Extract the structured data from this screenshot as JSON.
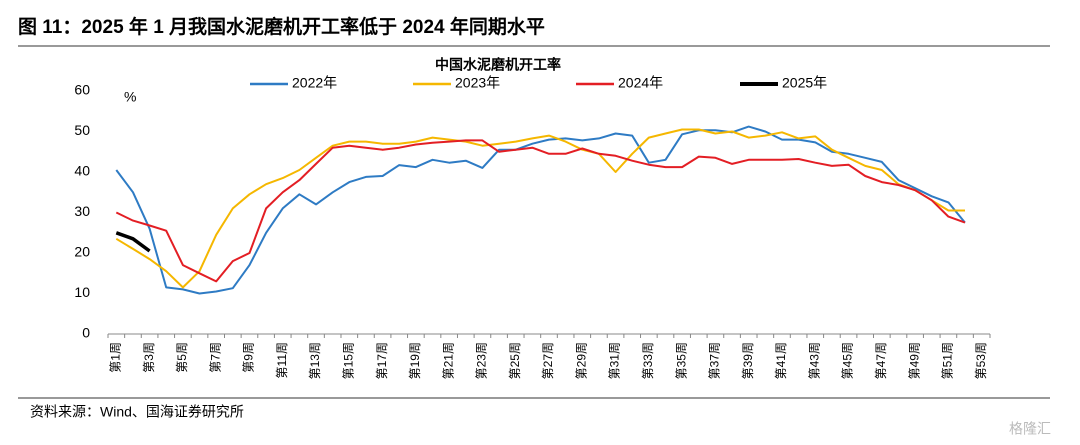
{
  "header": {
    "title": "图 11：2025 年 1 月我国水泥磨机开工率低于 2024 年同期水平"
  },
  "chart_data": {
    "type": "line",
    "title": "中国水泥磨机开工率",
    "y_unit": "%",
    "categories": [
      "第1周",
      null,
      "第3周",
      null,
      "第5周",
      null,
      "第7周",
      null,
      "第9周",
      null,
      "第11周",
      null,
      "第13周",
      null,
      "第15周",
      null,
      "第17周",
      null,
      "第19周",
      null,
      "第21周",
      null,
      "第23周",
      null,
      "第25周",
      null,
      "第27周",
      null,
      "第29周",
      null,
      "第31周",
      null,
      "第33周",
      null,
      "第35周",
      null,
      "第37周",
      null,
      "第39周",
      null,
      "第41周",
      null,
      "第43周",
      null,
      "第45周",
      null,
      "第47周",
      null,
      "第49周",
      null,
      "第51周",
      null,
      "第53周"
    ],
    "series": [
      {
        "name": "2022年",
        "color": "#2e7bc4",
        "values": [
          40.5,
          35,
          26,
          11.5,
          11,
          10,
          10.5,
          11.3,
          17,
          25,
          31,
          34.5,
          32,
          35,
          37.5,
          38.8,
          39,
          41.7,
          41.2,
          43,
          42.3,
          42.8,
          41,
          45.5,
          45.5,
          47,
          48,
          48.3,
          47.8,
          48.3,
          49.5,
          49,
          42.3,
          43,
          49.3,
          50.3,
          50.3,
          49.8,
          51.2,
          50,
          48,
          48,
          47.3,
          45,
          44.5,
          43.5,
          42.5,
          38,
          36,
          34,
          32.5,
          27.5,
          null
        ]
      },
      {
        "name": "2023年",
        "color": "#f5b700",
        "values": [
          23.5,
          21,
          18.5,
          15.5,
          11.5,
          15.5,
          24.5,
          31,
          34.5,
          37,
          38.5,
          40.5,
          43.5,
          46.5,
          47.5,
          47.5,
          47,
          47,
          47.5,
          48.5,
          48,
          47.5,
          46.5,
          47,
          47.5,
          48.3,
          49,
          47.5,
          45.5,
          44.5,
          40,
          44.5,
          48.5,
          49.5,
          50.5,
          50.5,
          49.5,
          50,
          48.5,
          49,
          49.8,
          48.3,
          48.8,
          45.5,
          43.5,
          41.5,
          40.5,
          37,
          35.5,
          33,
          30.5,
          30.5,
          null
        ]
      },
      {
        "name": "2024年",
        "color": "#e31e24",
        "values": [
          30,
          28,
          26.8,
          25.5,
          17,
          15,
          13,
          18,
          20,
          31,
          35,
          38,
          42,
          46,
          46.5,
          46,
          45.5,
          46,
          46.8,
          47.2,
          47.5,
          47.8,
          47.8,
          45,
          45.5,
          46,
          44.5,
          44.5,
          45.8,
          44.5,
          44,
          42.8,
          41.8,
          41.2,
          41.2,
          43.8,
          43.5,
          42,
          43,
          43,
          43,
          43.2,
          42.3,
          41.5,
          41.8,
          39,
          37.5,
          36.8,
          35.5,
          33,
          29,
          27.5,
          null
        ]
      },
      {
        "name": "2025年",
        "color": "#000000",
        "values": [
          25,
          23.5,
          20.5,
          null,
          null,
          null,
          null,
          null,
          null,
          null,
          null,
          null,
          null,
          null,
          null,
          null,
          null,
          null,
          null,
          null,
          null,
          null,
          null,
          null,
          null,
          null,
          null,
          null,
          null,
          null,
          null,
          null,
          null,
          null,
          null,
          null,
          null,
          null,
          null,
          null,
          null,
          null,
          null,
          null,
          null,
          null,
          null,
          null,
          null,
          null,
          null,
          null,
          null
        ]
      }
    ],
    "ylim": [
      0,
      60
    ],
    "yticks": [
      0,
      10,
      20,
      30,
      40,
      50,
      60
    ],
    "grid": false
  },
  "footer": {
    "source": "资料来源：Wind、国海证券研究所",
    "watermark": "格隆汇"
  }
}
